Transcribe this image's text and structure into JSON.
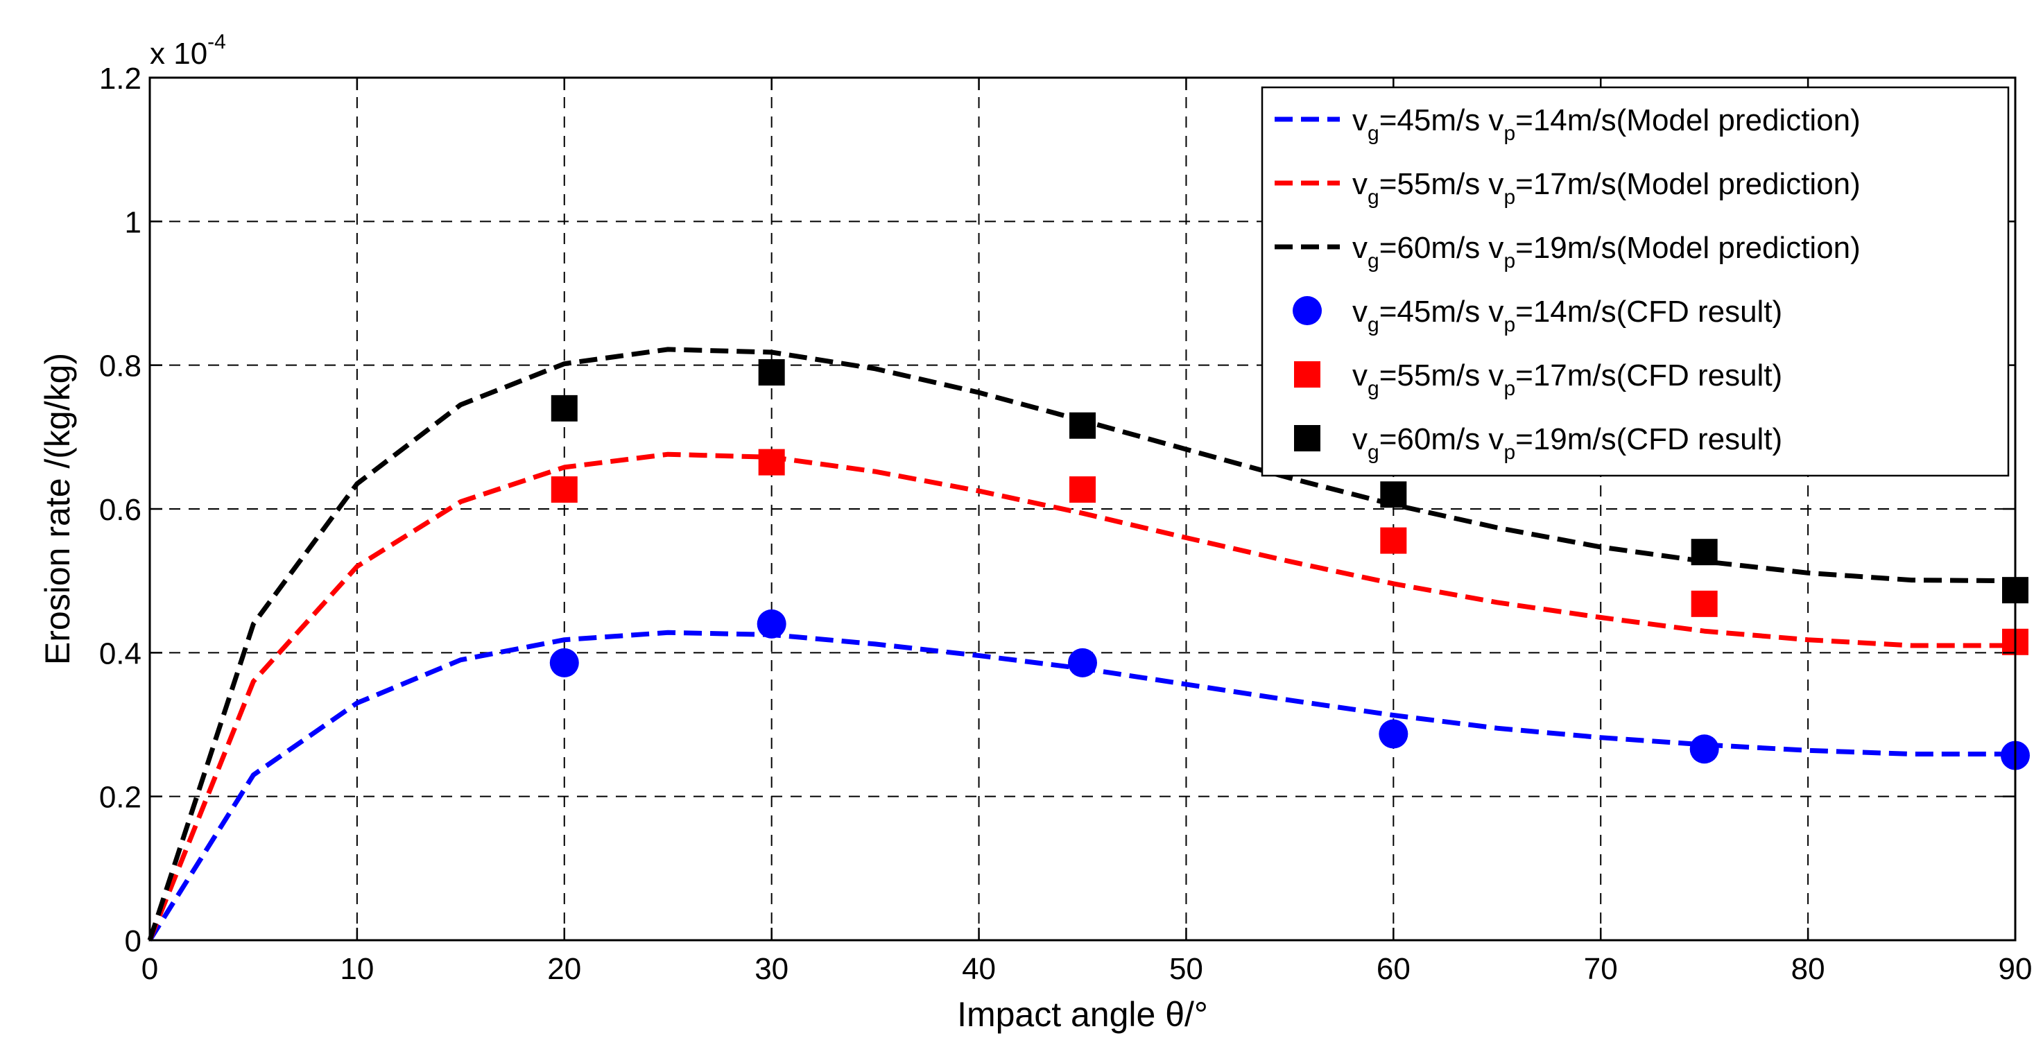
{
  "chart_data": {
    "type": "line",
    "title": "",
    "xlabel": "Impact angle θ/°",
    "ylabel": "Erosion rate /(kg/kg)",
    "y_multiplier": {
      "base": "x 10",
      "exponent": "-4"
    },
    "xlim": [
      0,
      90
    ],
    "ylim": [
      0,
      1.2
    ],
    "x_ticks": [
      0,
      10,
      20,
      30,
      40,
      50,
      60,
      70,
      80,
      90
    ],
    "x_tick_labels": [
      "0",
      "10",
      "20",
      "30",
      "40",
      "50",
      "60",
      "70",
      "80",
      "90"
    ],
    "y_ticks": [
      0,
      0.2,
      0.4,
      0.6,
      0.8,
      1.0,
      1.2
    ],
    "y_tick_labels": [
      "0",
      "0.2",
      "0.4",
      "0.6",
      "0.8",
      "1",
      "1.2"
    ],
    "grid": true,
    "legend_position": "top-right",
    "series": [
      {
        "kind": "line",
        "color": "#0000ff",
        "legend": {
          "g": "45",
          "p": "14",
          "note": "Model prediction"
        },
        "x": [
          0,
          5,
          10,
          15,
          20,
          25,
          30,
          35,
          40,
          45,
          50,
          55,
          60,
          65,
          70,
          75,
          80,
          85,
          90
        ],
        "y": [
          0,
          0.23,
          0.33,
          0.39,
          0.418,
          0.428,
          0.425,
          0.412,
          0.396,
          0.378,
          0.356,
          0.334,
          0.313,
          0.295,
          0.282,
          0.272,
          0.264,
          0.259,
          0.259
        ]
      },
      {
        "kind": "line",
        "color": "#ff0000",
        "legend": {
          "g": "55",
          "p": "17",
          "note": "Model prediction"
        },
        "x": [
          0,
          5,
          10,
          15,
          20,
          25,
          30,
          35,
          40,
          45,
          50,
          55,
          60,
          65,
          70,
          75,
          80,
          85,
          90
        ],
        "y": [
          0,
          0.36,
          0.52,
          0.61,
          0.658,
          0.676,
          0.672,
          0.652,
          0.625,
          0.594,
          0.56,
          0.527,
          0.496,
          0.47,
          0.449,
          0.43,
          0.418,
          0.41,
          0.41
        ]
      },
      {
        "kind": "line",
        "color": "#000000",
        "legend": {
          "g": "60",
          "p": "19",
          "note": "Model prediction"
        },
        "x": [
          0,
          5,
          10,
          15,
          20,
          25,
          30,
          35,
          40,
          45,
          50,
          55,
          60,
          65,
          70,
          75,
          80,
          85,
          90
        ],
        "y": [
          0,
          0.44,
          0.635,
          0.745,
          0.802,
          0.822,
          0.818,
          0.795,
          0.762,
          0.723,
          0.683,
          0.643,
          0.606,
          0.574,
          0.547,
          0.527,
          0.511,
          0.501,
          0.5
        ]
      },
      {
        "kind": "scatter",
        "marker": "circle",
        "color": "#0000ff",
        "legend": {
          "g": "45",
          "p": "14",
          "note": "CFD result"
        },
        "x": [
          20,
          30,
          45,
          60,
          75,
          90
        ],
        "y": [
          0.386,
          0.44,
          0.386,
          0.287,
          0.266,
          0.257
        ]
      },
      {
        "kind": "scatter",
        "marker": "square",
        "color": "#ff0000",
        "legend": {
          "g": "55",
          "p": "17",
          "note": "CFD result"
        },
        "x": [
          20,
          30,
          45,
          60,
          75,
          90
        ],
        "y": [
          0.627,
          0.665,
          0.627,
          0.556,
          0.468,
          0.415
        ]
      },
      {
        "kind": "scatter",
        "marker": "square",
        "color": "#000000",
        "legend": {
          "g": "60",
          "p": "19",
          "note": "CFD result"
        },
        "x": [
          20,
          30,
          45,
          60,
          75,
          90
        ],
        "y": [
          0.74,
          0.79,
          0.716,
          0.62,
          0.54,
          0.487
        ]
      }
    ]
  }
}
